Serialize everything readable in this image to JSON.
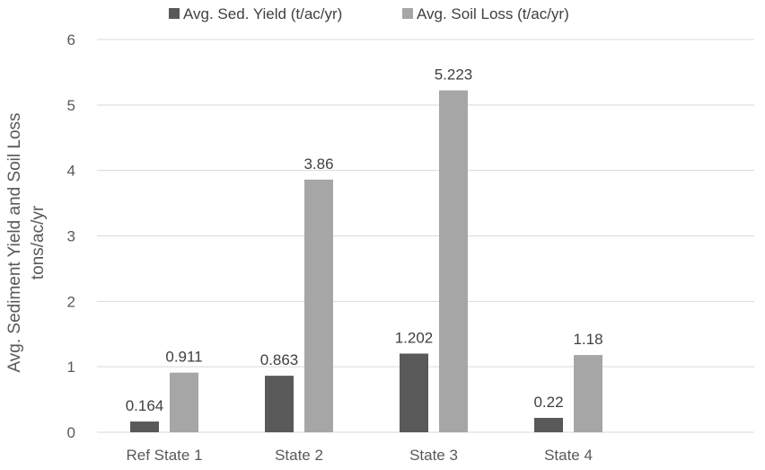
{
  "chart_data": {
    "type": "bar",
    "categories": [
      "Ref State 1",
      "State 2",
      "State 3",
      "State 4"
    ],
    "series": [
      {
        "name": "Avg. Sed. Yield (t/ac/yr)",
        "values": [
          0.164,
          0.863,
          1.202,
          0.22
        ],
        "labels": [
          "0.164",
          "0.863",
          "1.202",
          "0.22"
        ],
        "color": "#595959"
      },
      {
        "name": "Avg. Soil Loss (t/ac/yr)",
        "values": [
          0.911,
          3.86,
          5.223,
          1.18
        ],
        "labels": [
          "0.911",
          "3.86",
          "5.223",
          "1.18"
        ],
        "color": "#a6a6a6"
      }
    ],
    "ylabel_line1": "Avg. Sediment Yield and Soil Loss",
    "ylabel_line2": "tons/ac/yr",
    "xlabel": "",
    "ylim": [
      0,
      6
    ],
    "yticks": [
      0,
      1,
      2,
      3,
      4,
      5,
      6
    ],
    "grid": true,
    "legend_position": "top",
    "gridline_color": "#d9d9d9"
  }
}
